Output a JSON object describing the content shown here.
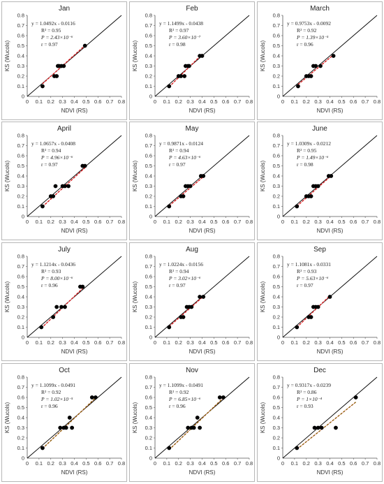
{
  "chart_data": [
    {
      "type": "scatter",
      "title": "Jan",
      "xlabel": "NDVI (RS)",
      "ylabel": "KS (Wucols)",
      "xlim": [
        0,
        0.8
      ],
      "ylim": [
        0,
        0.8
      ],
      "ticks": [
        "0",
        "0.1",
        "0.2",
        "0.3",
        "0.4",
        "0.5",
        "0.6",
        "0.7",
        "0.8"
      ],
      "points": [
        [
          0.13,
          0.1
        ],
        [
          0.23,
          0.2
        ],
        [
          0.25,
          0.2
        ],
        [
          0.26,
          0.3
        ],
        [
          0.27,
          0.3
        ],
        [
          0.29,
          0.3
        ],
        [
          0.31,
          0.3
        ],
        [
          0.49,
          0.5
        ]
      ],
      "fit": {
        "slope": 1.0492,
        "intercept": -0.0116
      },
      "annotations": [
        "y = 1.0492x - 0.0116",
        "R² = 0.95",
        "P = 2.43×10⁻⁶",
        "r = 0.97"
      ]
    },
    {
      "type": "scatter",
      "title": "Feb",
      "xlabel": "NDVI (RS)",
      "ylabel": "KS (Wucols)",
      "xlim": [
        0,
        0.8
      ],
      "ylim": [
        0,
        0.8
      ],
      "ticks": [
        "0",
        "0.1",
        "0.2",
        "0.3",
        "0.4",
        "0.5",
        "0.6",
        "0.7",
        "0.8"
      ],
      "points": [
        [
          0.12,
          0.1
        ],
        [
          0.2,
          0.2
        ],
        [
          0.22,
          0.2
        ],
        [
          0.25,
          0.2
        ],
        [
          0.26,
          0.3
        ],
        [
          0.28,
          0.3
        ],
        [
          0.29,
          0.3
        ],
        [
          0.38,
          0.4
        ],
        [
          0.4,
          0.4
        ]
      ],
      "fit": {
        "slope": 1.1499,
        "intercept": -0.0438
      },
      "annotations": [
        "y = 1.1499x - 0.0438",
        "R² = 0.97",
        "P = 3.60×10⁻⁷",
        "r = 0.98"
      ]
    },
    {
      "type": "scatter",
      "title": "March",
      "xlabel": "NDVI (RS)",
      "ylabel": "KS (Wucols)",
      "xlim": [
        0,
        0.8
      ],
      "ylim": [
        0,
        0.8
      ],
      "ticks": [
        "0",
        "0.1",
        "0.2",
        "0.3",
        "0.4",
        "0.5",
        "0.6",
        "0.7",
        "0.8"
      ],
      "points": [
        [
          0.13,
          0.1
        ],
        [
          0.2,
          0.2
        ],
        [
          0.22,
          0.2
        ],
        [
          0.24,
          0.2
        ],
        [
          0.26,
          0.3
        ],
        [
          0.28,
          0.3
        ],
        [
          0.32,
          0.3
        ],
        [
          0.43,
          0.4
        ]
      ],
      "fit": {
        "slope": 0.9753,
        "intercept": -0.0092
      },
      "annotations": [
        "y = 0.9753x - 0.0092",
        "R² = 0.92",
        "P = 1.39×10⁻⁵",
        "r = 0.96"
      ]
    },
    {
      "type": "scatter",
      "title": "April",
      "xlabel": "NDVI (RS)",
      "ylabel": "KS (Wucols)",
      "xlim": [
        0,
        0.8
      ],
      "ylim": [
        0,
        0.8
      ],
      "ticks": [
        "0",
        "0.1",
        "0.2",
        "0.3",
        "0.4",
        "0.5",
        "0.6",
        "0.7",
        "0.8"
      ],
      "points": [
        [
          0.13,
          0.1
        ],
        [
          0.2,
          0.2
        ],
        [
          0.22,
          0.2
        ],
        [
          0.24,
          0.3
        ],
        [
          0.3,
          0.3
        ],
        [
          0.32,
          0.3
        ],
        [
          0.35,
          0.3
        ],
        [
          0.47,
          0.5
        ],
        [
          0.49,
          0.5
        ]
      ],
      "fit": {
        "slope": 1.0657,
        "intercept": -0.0408
      },
      "annotations": [
        "y = 1.0657x - 0.0408",
        "R² = 0.94",
        "P = 4.96×10⁻⁶",
        "r = 0.97"
      ]
    },
    {
      "type": "scatter",
      "title": "May",
      "xlabel": "NDVI (RS)",
      "ylabel": "KS (Wucols)",
      "xlim": [
        0,
        0.8
      ],
      "ylim": [
        0,
        0.8
      ],
      "ticks": [
        "0",
        "0.1",
        "0.2",
        "0.3",
        "0.4",
        "0.5",
        "0.6",
        "0.7",
        "0.8"
      ],
      "points": [
        [
          0.12,
          0.1
        ],
        [
          0.22,
          0.2
        ],
        [
          0.24,
          0.2
        ],
        [
          0.26,
          0.3
        ],
        [
          0.28,
          0.3
        ],
        [
          0.3,
          0.3
        ],
        [
          0.39,
          0.4
        ],
        [
          0.41,
          0.4
        ]
      ],
      "fit": {
        "slope": 0.9871,
        "intercept": -0.0124
      },
      "annotations": [
        "y = 0.9871x - 0.0124",
        "R² = 0.94",
        "P = 4.63×10⁻⁶",
        "r = 0.97"
      ]
    },
    {
      "type": "scatter",
      "title": "June",
      "xlabel": "NDVI (RS)",
      "ylabel": "KS (Wucols)",
      "xlim": [
        0,
        0.8
      ],
      "ylim": [
        0,
        0.8
      ],
      "ticks": [
        "0",
        "0.1",
        "0.2",
        "0.3",
        "0.4",
        "0.5",
        "0.6",
        "0.7",
        "0.8"
      ],
      "points": [
        [
          0.12,
          0.1
        ],
        [
          0.2,
          0.2
        ],
        [
          0.22,
          0.2
        ],
        [
          0.24,
          0.2
        ],
        [
          0.26,
          0.3
        ],
        [
          0.28,
          0.3
        ],
        [
          0.3,
          0.3
        ],
        [
          0.39,
          0.4
        ],
        [
          0.41,
          0.4
        ]
      ],
      "fit": {
        "slope": 1.0309,
        "intercept": -0.0212
      },
      "annotations": [
        "y = 1.0309x - 0.0212",
        "R² = 0.95",
        "P = 1.49×10⁻⁶",
        "r = 0.98"
      ]
    },
    {
      "type": "scatter",
      "title": "July",
      "xlabel": "NDVI (RS)",
      "ylabel": "KS (Wucols)",
      "xlim": [
        0,
        0.8
      ],
      "ylim": [
        0,
        0.8
      ],
      "ticks": [
        "0",
        "0.1",
        "0.2",
        "0.3",
        "0.4",
        "0.5",
        "0.6",
        "0.7",
        "0.8"
      ],
      "points": [
        [
          0.12,
          0.1
        ],
        [
          0.22,
          0.2
        ],
        [
          0.25,
          0.3
        ],
        [
          0.29,
          0.3
        ],
        [
          0.32,
          0.3
        ],
        [
          0.45,
          0.5
        ],
        [
          0.47,
          0.5
        ]
      ],
      "fit": {
        "slope": 1.1214,
        "intercept": -0.0436
      },
      "annotations": [
        "y = 1.1214x - 0.0436",
        "R² = 0.93",
        "P = 8.00×10⁻⁶",
        "r = 0.96"
      ]
    },
    {
      "type": "scatter",
      "title": "Aug",
      "xlabel": "NDVI (RS)",
      "ylabel": "KS (Wucols)",
      "xlim": [
        0,
        0.8
      ],
      "ylim": [
        0,
        0.8
      ],
      "ticks": [
        "0",
        "0.1",
        "0.2",
        "0.3",
        "0.4",
        "0.5",
        "0.6",
        "0.7",
        "0.8"
      ],
      "points": [
        [
          0.12,
          0.1
        ],
        [
          0.22,
          0.2
        ],
        [
          0.24,
          0.2
        ],
        [
          0.27,
          0.3
        ],
        [
          0.29,
          0.3
        ],
        [
          0.31,
          0.3
        ],
        [
          0.38,
          0.4
        ],
        [
          0.41,
          0.4
        ]
      ],
      "fit": {
        "slope": 1.0224,
        "intercept": -0.0156
      },
      "annotations": [
        "y = 1.0224x - 0.0156",
        "R² = 0.94",
        "P = 3.02×10⁻⁶",
        "r = 0.97"
      ]
    },
    {
      "type": "scatter",
      "title": "Sep",
      "xlabel": "NDVI (RS)",
      "ylabel": "KS (Wucols)",
      "xlim": [
        0,
        0.8
      ],
      "ylim": [
        0,
        0.8
      ],
      "ticks": [
        "0",
        "0.1",
        "0.2",
        "0.3",
        "0.4",
        "0.5",
        "0.6",
        "0.7",
        "0.8"
      ],
      "points": [
        [
          0.12,
          0.1
        ],
        [
          0.22,
          0.2
        ],
        [
          0.24,
          0.2
        ],
        [
          0.26,
          0.3
        ],
        [
          0.28,
          0.3
        ],
        [
          0.3,
          0.3
        ],
        [
          0.4,
          0.4
        ]
      ],
      "fit": {
        "slope": 1.1081,
        "intercept": -0.0331
      },
      "annotations": [
        "y = 1.1081x - 0.0331",
        "R² = 0.93",
        "P = 5.63×10⁻⁶",
        "r = 0.97"
      ]
    },
    {
      "type": "scatter",
      "title": "Oct",
      "xlabel": "NDVI (RS)",
      "ylabel": "KS (Wucols)",
      "xlim": [
        0,
        0.8
      ],
      "ylim": [
        0,
        0.8
      ],
      "ticks": [
        "0",
        "0.1",
        "0.2",
        "0.3",
        "0.4",
        "0.5",
        "0.6",
        "0.7",
        "0.8"
      ],
      "points": [
        [
          0.13,
          0.1
        ],
        [
          0.28,
          0.3
        ],
        [
          0.31,
          0.3
        ],
        [
          0.33,
          0.3
        ],
        [
          0.36,
          0.4
        ],
        [
          0.38,
          0.3
        ],
        [
          0.55,
          0.6
        ],
        [
          0.58,
          0.6
        ]
      ],
      "fit": {
        "slope": 1.1099,
        "intercept": -0.0491
      },
      "annotations": [
        "y = 1.1099x - 0.0491",
        "R² = 0.92",
        "P = 1.02×10⁻⁵",
        "r = 0.96"
      ]
    },
    {
      "type": "scatter",
      "title": "Nov",
      "xlabel": "NDVI (RS)",
      "ylabel": "KS (Wucols)",
      "xlim": [
        0,
        0.8
      ],
      "ylim": [
        0,
        0.8
      ],
      "ticks": [
        "0",
        "0.1",
        "0.2",
        "0.3",
        "0.4",
        "0.5",
        "0.6",
        "0.7",
        "0.8"
      ],
      "points": [
        [
          0.12,
          0.1
        ],
        [
          0.28,
          0.3
        ],
        [
          0.31,
          0.3
        ],
        [
          0.33,
          0.3
        ],
        [
          0.36,
          0.4
        ],
        [
          0.38,
          0.3
        ],
        [
          0.55,
          0.6
        ],
        [
          0.58,
          0.6
        ]
      ],
      "fit": {
        "slope": 1.1099,
        "intercept": -0.0491
      },
      "annotations": [
        "y = 1.1099x - 0.0491",
        "R² = 0.92",
        "P = 6.85×10⁻⁶",
        "r = 0.96"
      ]
    },
    {
      "type": "scatter",
      "title": "Dec",
      "xlabel": "NDVI (RS)",
      "ylabel": "KS (Wucols)",
      "xlim": [
        0,
        0.8
      ],
      "ylim": [
        0,
        0.8
      ],
      "ticks": [
        "0",
        "0.1",
        "0.2",
        "0.3",
        "0.4",
        "0.5",
        "0.6",
        "0.7",
        "0.8"
      ],
      "points": [
        [
          0.12,
          0.1
        ],
        [
          0.27,
          0.3
        ],
        [
          0.3,
          0.3
        ],
        [
          0.33,
          0.3
        ],
        [
          0.45,
          0.3
        ],
        [
          0.62,
          0.6
        ]
      ],
      "fit": {
        "slope": 0.9317,
        "intercept": -0.0239
      },
      "annotations": [
        "y = 0.9317x - 0.0239",
        "R² = 0.86",
        "P = 1×10⁻⁴",
        "r = 0.93"
      ]
    }
  ],
  "colors": {
    "frame": "#b7b7b7",
    "axis": "#555555",
    "grid": "#dddddd",
    "reference_line": "#000000",
    "points": "#000000",
    "fit_line": "#d7191c",
    "fit_line_alt": "#8b5a00",
    "trend_line": "#f0a0a0"
  }
}
